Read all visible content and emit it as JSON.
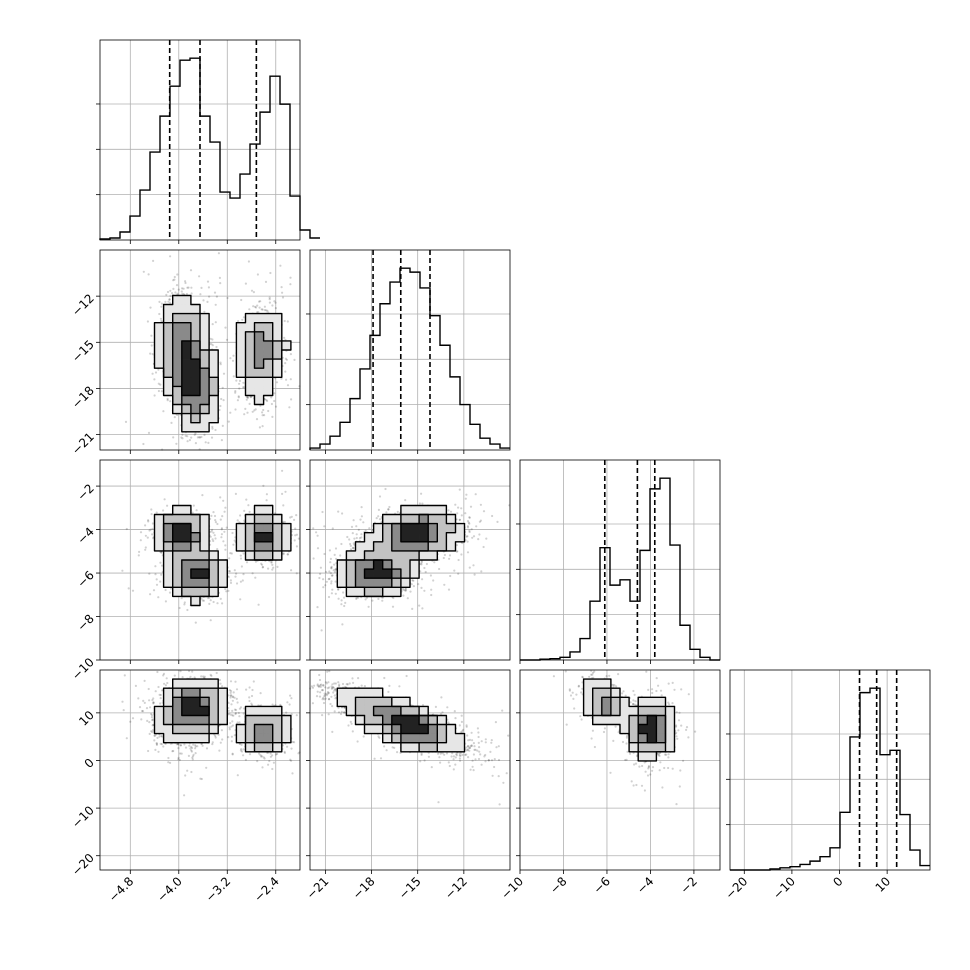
{
  "chart_data": {
    "type": "corner",
    "description_source": "corner plot of 4 parameters: 1-D marginal histograms on the diagonal with dashed quantile lines, 2-D scatter + density contours below the diagonal",
    "grid": true,
    "quantile_line_style": "dashed",
    "parameters": [
      {
        "range": [
          -5.3,
          -2.0
        ],
        "ticks": [
          -4.8,
          -4.0,
          -3.2,
          -2.4
        ],
        "tick_labels": [
          "−4.8",
          "−4.0",
          "−3.2",
          "−2.4"
        ],
        "quantiles": [
          -4.15,
          -3.65,
          -2.72
        ],
        "hist_edges_start": -5.3,
        "hist_bin_width": 0.165,
        "hist_counts": [
          0.5,
          1,
          4,
          12,
          25,
          44,
          62,
          77,
          90,
          91,
          62,
          49,
          24,
          21,
          33,
          48,
          64,
          82,
          68,
          22,
          5,
          1
        ]
      },
      {
        "range": [
          -22.0,
          -9.0
        ],
        "ticks": [
          -21,
          -18,
          -15,
          -12
        ],
        "tick_labels": [
          "−21",
          "−18",
          "−15",
          "−12"
        ],
        "quantiles": [
          -17.9,
          -16.1,
          -14.2
        ],
        "hist_edges_start": -22.0,
        "hist_bin_width": 0.65,
        "hist_counts": [
          1,
          3,
          7,
          14,
          26,
          41,
          58,
          74,
          85,
          92,
          90,
          82,
          68,
          53,
          37,
          23,
          13,
          6,
          3,
          1
        ]
      },
      {
        "range": [
          -10.0,
          -0.8
        ],
        "ticks": [
          -10,
          -8,
          -6,
          -4,
          -2
        ],
        "tick_labels": [
          "−10",
          "−8",
          "−6",
          "−4",
          "−2"
        ],
        "quantiles": [
          -6.1,
          -4.6,
          -3.8
        ],
        "hist_edges_start": -10.0,
        "hist_bin_width": 0.46,
        "hist_counts": [
          0,
          0,
          0.3,
          0.5,
          1,
          3,
          8,
          22,
          42,
          28,
          30,
          22,
          41,
          64,
          68,
          43,
          13,
          4,
          1,
          0
        ]
      },
      {
        "range": [
          -23.0,
          19.0
        ],
        "ticks": [
          -20,
          -10,
          0,
          10
        ],
        "tick_labels": [
          "−20",
          "−10",
          "0",
          "10"
        ],
        "quantiles": [
          4.2,
          7.8,
          12.0
        ],
        "hist_edges_start": -23.0,
        "hist_bin_width": 2.1,
        "hist_counts": [
          0,
          0,
          0,
          0,
          0.5,
          1,
          1.5,
          2.5,
          4,
          6,
          10,
          26,
          60,
          80,
          82,
          52,
          54,
          25,
          9,
          2
        ]
      }
    ],
    "hist_y_ticks_fraction": [
      0.25,
      0.5,
      0.75
    ],
    "pairs": [
      {
        "x": 0,
        "y": 1,
        "clusters": [
          {
            "cx": -3.95,
            "cy": -14.8,
            "sx": 0.18,
            "sy": 1.4,
            "rho": 0.0,
            "w": 0.34
          },
          {
            "cx": -3.75,
            "cy": -17.9,
            "sx": 0.17,
            "sy": 1.3,
            "rho": -0.2,
            "w": 0.36
          },
          {
            "cx": -2.65,
            "cy": -15.7,
            "sx": 0.16,
            "sy": 1.4,
            "rho": 0.1,
            "w": 0.3
          }
        ]
      },
      {
        "x": 0,
        "y": 2,
        "clusters": [
          {
            "cx": -3.95,
            "cy": -4.2,
            "sx": 0.2,
            "sy": 0.45,
            "rho": 0.0,
            "w": 0.34
          },
          {
            "cx": -3.7,
            "cy": -6.1,
            "sx": 0.2,
            "sy": 0.45,
            "rho": 0.0,
            "w": 0.36
          },
          {
            "cx": -2.6,
            "cy": -4.3,
            "sx": 0.17,
            "sy": 0.5,
            "rho": 0.0,
            "w": 0.3
          }
        ]
      },
      {
        "x": 1,
        "y": 2,
        "clusters": [
          {
            "cx": -15.2,
            "cy": -4.2,
            "sx": 1.4,
            "sy": 0.45,
            "rho": 0.2,
            "w": 0.55
          },
          {
            "cx": -17.8,
            "cy": -6.0,
            "sx": 1.2,
            "sy": 0.45,
            "rho": 0.1,
            "w": 0.45
          }
        ]
      },
      {
        "x": 0,
        "y": 3,
        "clusters": [
          {
            "cx": -3.7,
            "cy": 11.5,
            "sx": 0.25,
            "sy": 2.5,
            "rho": 0.0,
            "w": 0.5
          },
          {
            "cx": -2.6,
            "cy": 6.0,
            "sx": 0.18,
            "sy": 2.0,
            "rho": 0.0,
            "w": 0.3
          },
          {
            "cx": -3.95,
            "cy": 8.0,
            "sx": 0.22,
            "sy": 3.0,
            "rho": 0.0,
            "w": 0.2
          }
        ]
      },
      {
        "x": 1,
        "y": 3,
        "clusters": [
          {
            "cx": -16.5,
            "cy": 9.0,
            "sx": 2.1,
            "sy": 3.0,
            "rho": -0.85,
            "w": 0.7
          },
          {
            "cx": -15.0,
            "cy": 6.0,
            "sx": 1.2,
            "sy": 2.0,
            "rho": -0.5,
            "w": 0.3
          }
        ]
      },
      {
        "x": 2,
        "y": 3,
        "clusters": [
          {
            "cx": -6.1,
            "cy": 12.0,
            "sx": 0.35,
            "sy": 2.0,
            "rho": -0.4,
            "w": 0.35
          },
          {
            "cx": -4.0,
            "cy": 6.5,
            "sx": 0.4,
            "sy": 2.5,
            "rho": 0.0,
            "w": 0.65
          }
        ]
      }
    ]
  }
}
